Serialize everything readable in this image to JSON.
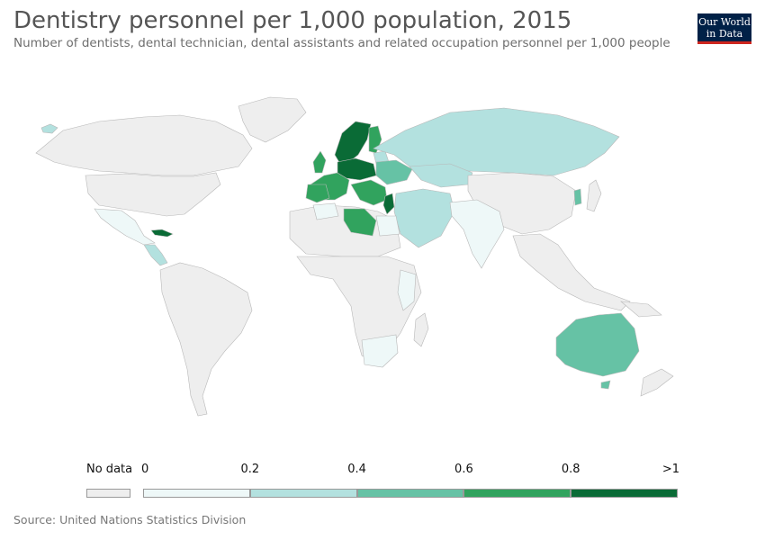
{
  "title": "Dentistry personnel per 1,000 population, 2015",
  "subtitle": "Number of dentists, dental technician, dental assistants and related occupation personnel per 1,000 people",
  "logo": {
    "line1": "Our World",
    "line2": "in Data",
    "bg": "#002147",
    "accent": "#ce261e"
  },
  "source": "Source: United Nations Statistics Division",
  "legend": {
    "no_data_label": "No data",
    "no_data_color": "#eeeeee",
    "bins": [
      {
        "from": "0",
        "to": "0.2",
        "color": "#eef8f8"
      },
      {
        "from": "0.2",
        "to": "0.4",
        "color": "#b3e1df"
      },
      {
        "from": "0.4",
        "to": "0.6",
        "color": "#66c2a5"
      },
      {
        "from": "0.6",
        "to": "0.8",
        "color": "#31a35e"
      },
      {
        "from": "0.8",
        "to": ">1",
        "color": "#0a6b36"
      }
    ],
    "tick_labels": [
      "0",
      "0.2",
      "0.4",
      "0.6",
      "0.8",
      ">1"
    ]
  },
  "map_colors": {
    "no_data": "#eeeeee",
    "border": "#b8b8b8"
  }
}
